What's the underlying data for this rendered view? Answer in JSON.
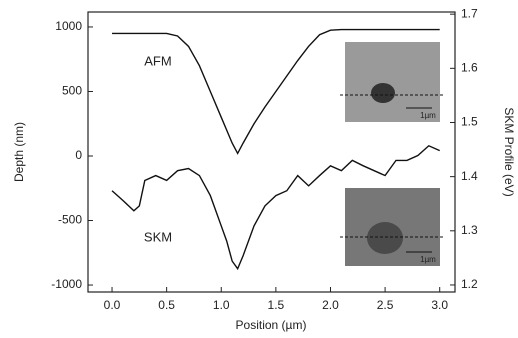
{
  "chart_data": {
    "type": "line",
    "xlabel": "Position (µm)",
    "ylabel": "Depth (nm)",
    "y2label": "SKM Profile (eV)",
    "xlim": [
      -0.22,
      3.14
    ],
    "xticks": [
      {
        "value": 0,
        "label": "0.0"
      },
      0.5,
      {
        "value": 1,
        "label": "1.0"
      },
      1.5,
      {
        "value": 2,
        "label": "2.0"
      },
      2.5,
      {
        "value": 3,
        "label": "3.0"
      }
    ],
    "ylim": [
      -1054,
      1116
    ],
    "yticks": [
      -1000,
      -500,
      0,
      500,
      1000
    ],
    "y2lim": [
      1.187,
      1.704
    ],
    "y2ticks": [
      1.2,
      1.3,
      1.4,
      1.5,
      1.6,
      1.7
    ],
    "series": [
      {
        "name": "AFM",
        "color": "#111111",
        "axis": "y",
        "x": [
          0,
          0.5,
          0.6,
          0.7,
          0.8,
          0.9,
          1.0,
          1.1,
          1.15,
          1.2,
          1.3,
          1.4,
          1.5,
          1.6,
          1.7,
          1.8,
          1.9,
          2.0,
          2.1,
          3.0
        ],
        "values": [
          950,
          950,
          930,
          850,
          700,
          500,
          300,
          100,
          20,
          100,
          250,
          380,
          500,
          620,
          740,
          850,
          940,
          975,
          980,
          980
        ]
      },
      {
        "name": "SKM",
        "color": "#111111",
        "axis": "y2",
        "x": [
          0,
          0.1,
          0.2,
          0.25,
          0.3,
          0.4,
          0.5,
          0.6,
          0.7,
          0.8,
          0.9,
          1.0,
          1.05,
          1.1,
          1.15,
          1.2,
          1.3,
          1.4,
          1.5,
          1.6,
          1.7,
          1.8,
          1.9,
          2.0,
          2.1,
          2.2,
          2.3,
          2.4,
          2.5,
          2.6,
          2.7,
          2.8,
          2.9,
          3.0
        ],
        "values": [
          1.374,
          1.356,
          1.337,
          1.346,
          1.393,
          1.402,
          1.393,
          1.411,
          1.415,
          1.402,
          1.365,
          1.309,
          1.281,
          1.244,
          1.23,
          1.254,
          1.309,
          1.346,
          1.365,
          1.374,
          1.402,
          1.383,
          1.402,
          1.42,
          1.411,
          1.43,
          1.42,
          1.411,
          1.402,
          1.43,
          1.43,
          1.439,
          1.457,
          1.448
        ]
      }
    ],
    "annotations": [
      "1µm",
      "1µm"
    ]
  }
}
